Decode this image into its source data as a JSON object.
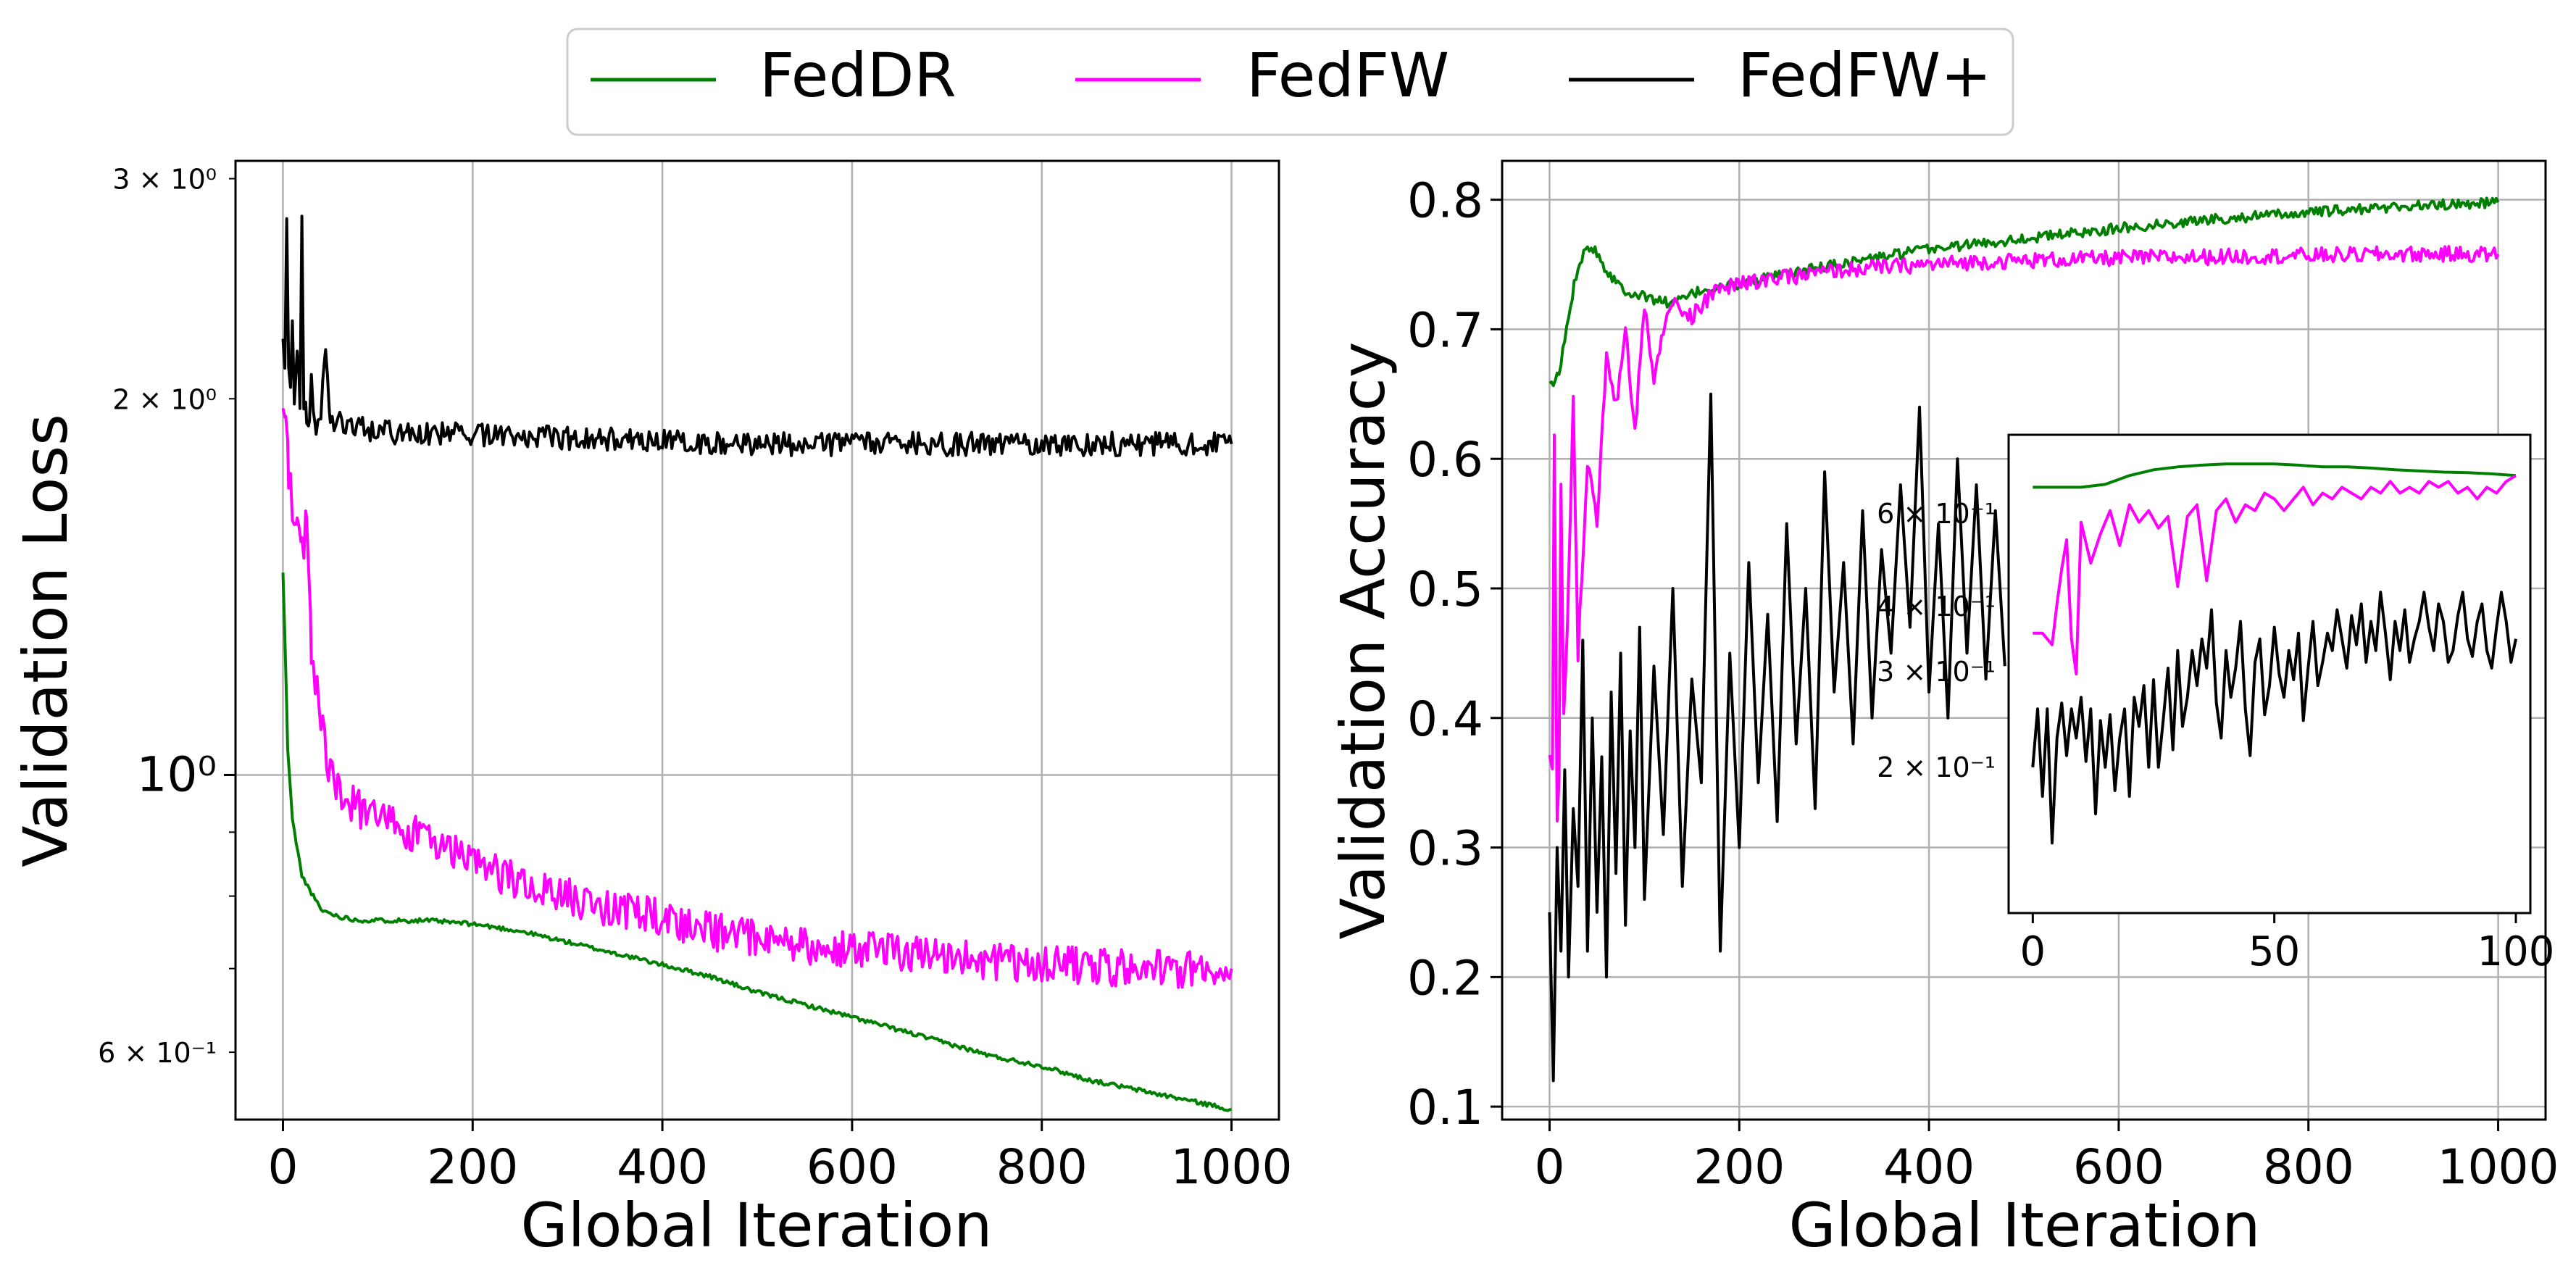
{
  "legend": {
    "entries": [
      {
        "label": "FedDR",
        "color": "#008000"
      },
      {
        "label": "FedFW",
        "color": "#ff00ff"
      },
      {
        "label": "FedFW+",
        "color": "#000000"
      }
    ]
  },
  "chart_data": [
    {
      "type": "line",
      "title": "",
      "xlabel": "Global Iteration",
      "ylabel": "Validation Loss",
      "yscale": "log",
      "xlim": [
        -50,
        1050
      ],
      "ylim": [
        0.53,
        3.1
      ],
      "xticks": [
        0,
        200,
        400,
        600,
        800,
        1000
      ],
      "xtick_labels": [
        "0",
        "200",
        "400",
        "600",
        "800",
        "1000"
      ],
      "yticks_major": [
        1.0
      ],
      "ytick_major_labels": [
        "10⁰"
      ],
      "yticks_minor": [
        0.6,
        2.0,
        3.0
      ],
      "ytick_minor_labels": [
        "6 × 10⁻¹",
        "2 × 10⁰",
        "3 × 10⁰"
      ],
      "grid": true,
      "series": [
        {
          "name": "FedDR",
          "color": "#008000",
          "noise": 0.004,
          "x": [
            0,
            5,
            10,
            20,
            40,
            60,
            80,
            100,
            150,
            200,
            250,
            300,
            350,
            400,
            450,
            500,
            550,
            600,
            650,
            700,
            750,
            800,
            850,
            900,
            950,
            1000
          ],
          "y": [
            1.45,
            1.05,
            0.92,
            0.83,
            0.78,
            0.77,
            0.765,
            0.765,
            0.765,
            0.76,
            0.75,
            0.735,
            0.72,
            0.705,
            0.69,
            0.67,
            0.655,
            0.64,
            0.625,
            0.61,
            0.595,
            0.585,
            0.57,
            0.56,
            0.55,
            0.54
          ]
        },
        {
          "name": "FedFW",
          "color": "#ff00ff",
          "noise": 0.035,
          "x": [
            0,
            3,
            6,
            10,
            15,
            20,
            25,
            30,
            40,
            50,
            60,
            80,
            100,
            150,
            200,
            250,
            300,
            350,
            400,
            450,
            500,
            550,
            600,
            650,
            700,
            750,
            800,
            850,
            900,
            950,
            1000
          ],
          "y": [
            2.0,
            2.0,
            1.75,
            1.65,
            1.6,
            1.5,
            1.6,
            1.25,
            1.1,
            1.0,
            0.97,
            0.94,
            0.92,
            0.89,
            0.85,
            0.82,
            0.8,
            0.78,
            0.77,
            0.75,
            0.74,
            0.73,
            0.725,
            0.72,
            0.715,
            0.71,
            0.705,
            0.705,
            0.7,
            0.7,
            0.7
          ]
        },
        {
          "name": "FedFW+",
          "color": "#000000",
          "noise": 0.022,
          "x": [
            0,
            2,
            4,
            6,
            8,
            10,
            12,
            15,
            18,
            20,
            22,
            25,
            28,
            30,
            35,
            40,
            45,
            50,
            60,
            80,
            100,
            150,
            200,
            300,
            400,
            500,
            600,
            700,
            800,
            900,
            1000
          ],
          "y": [
            2.2,
            2.1,
            2.75,
            2.1,
            2.05,
            2.3,
            2.0,
            2.15,
            2.0,
            2.85,
            2.0,
            1.95,
            1.92,
            2.05,
            1.9,
            1.95,
            2.15,
            1.92,
            1.92,
            1.9,
            1.88,
            1.88,
            1.87,
            1.86,
            1.85,
            1.84,
            1.84,
            1.84,
            1.84,
            1.84,
            1.84
          ]
        }
      ]
    },
    {
      "type": "line",
      "title": "",
      "xlabel": "Global Iteration",
      "ylabel": "Validation Accuracy",
      "yscale": "linear",
      "xlim": [
        -50,
        1050
      ],
      "ylim": [
        0.09,
        0.83
      ],
      "xticks": [
        0,
        200,
        400,
        600,
        800,
        1000
      ],
      "xtick_labels": [
        "0",
        "200",
        "400",
        "600",
        "800",
        "1000"
      ],
      "yticks": [
        0.1,
        0.2,
        0.3,
        0.4,
        0.5,
        0.6,
        0.7,
        0.8
      ],
      "ytick_labels": [
        "0.1",
        "0.2",
        "0.3",
        "0.4",
        "0.5",
        "0.6",
        "0.7",
        "0.8"
      ],
      "grid": true,
      "series": [
        {
          "name": "FedDR",
          "color": "#008000",
          "noise": 0.004,
          "x": [
            0,
            10,
            20,
            30,
            40,
            50,
            60,
            80,
            100,
            130,
            160,
            200,
            300,
            400,
            500,
            600,
            700,
            800,
            900,
            1000
          ],
          "y": [
            0.655,
            0.665,
            0.71,
            0.75,
            0.765,
            0.76,
            0.745,
            0.73,
            0.725,
            0.72,
            0.73,
            0.735,
            0.75,
            0.762,
            0.77,
            0.778,
            0.785,
            0.79,
            0.795,
            0.798
          ]
        },
        {
          "name": "FedFW",
          "color": "#ff00ff",
          "noise": 0.006,
          "x": [
            0,
            3,
            5,
            8,
            10,
            12,
            15,
            20,
            25,
            30,
            40,
            50,
            60,
            70,
            80,
            90,
            100,
            110,
            120,
            130,
            150,
            175,
            200,
            250,
            300,
            350,
            400,
            450,
            500,
            600,
            700,
            800,
            900,
            1000
          ],
          "y": [
            0.37,
            0.36,
            0.62,
            0.32,
            0.35,
            0.58,
            0.4,
            0.5,
            0.65,
            0.45,
            0.6,
            0.55,
            0.68,
            0.64,
            0.7,
            0.62,
            0.72,
            0.66,
            0.7,
            0.72,
            0.71,
            0.73,
            0.735,
            0.74,
            0.745,
            0.748,
            0.75,
            0.752,
            0.753,
            0.755,
            0.756,
            0.757,
            0.758,
            0.758
          ]
        },
        {
          "name": "FedFW+",
          "color": "#000000",
          "noise": 0.0,
          "x": [
            0,
            4,
            8,
            12,
            16,
            20,
            25,
            30,
            35,
            40,
            45,
            50,
            55,
            60,
            65,
            70,
            75,
            80,
            85,
            90,
            95,
            100,
            110,
            120,
            130,
            140,
            150,
            160,
            170,
            180,
            190,
            200,
            210,
            220,
            230,
            240,
            250,
            260,
            270,
            280,
            290,
            300,
            310,
            320,
            330,
            340,
            350,
            360,
            370,
            380,
            390,
            400,
            410,
            420,
            430,
            440,
            450,
            460,
            470,
            480
          ],
          "y": [
            0.25,
            0.12,
            0.3,
            0.22,
            0.36,
            0.2,
            0.33,
            0.27,
            0.46,
            0.22,
            0.4,
            0.25,
            0.37,
            0.2,
            0.42,
            0.28,
            0.45,
            0.24,
            0.39,
            0.3,
            0.47,
            0.26,
            0.44,
            0.31,
            0.5,
            0.27,
            0.43,
            0.35,
            0.65,
            0.22,
            0.45,
            0.3,
            0.52,
            0.35,
            0.48,
            0.32,
            0.55,
            0.38,
            0.5,
            0.33,
            0.59,
            0.42,
            0.52,
            0.38,
            0.56,
            0.4,
            0.53,
            0.45,
            0.58,
            0.47,
            0.64,
            0.42,
            0.55,
            0.4,
            0.6,
            0.45,
            0.58,
            0.43,
            0.56,
            0.44
          ]
        }
      ]
    },
    {
      "type": "line",
      "title": "",
      "inset": true,
      "xlabel": "",
      "ylabel": "",
      "xlim": [
        -5,
        103
      ],
      "ylim": [
        0.05,
        0.87
      ],
      "xticks": [
        0,
        50,
        100
      ],
      "xtick_labels": [
        "0",
        "50",
        "100"
      ],
      "ytick_labels": [
        "6 × 10⁻¹",
        "4 × 10⁻¹",
        "3 × 10⁻¹",
        "2 × 10⁻¹"
      ],
      "series": [
        {
          "name": "FedDR",
          "color": "#008000",
          "noise": 0.0,
          "x": [
            0,
            5,
            10,
            15,
            20,
            25,
            30,
            35,
            40,
            45,
            50,
            55,
            60,
            65,
            70,
            75,
            80,
            85,
            90,
            95,
            100
          ],
          "y": [
            0.78,
            0.78,
            0.78,
            0.785,
            0.8,
            0.81,
            0.815,
            0.818,
            0.82,
            0.82,
            0.82,
            0.818,
            0.815,
            0.815,
            0.813,
            0.81,
            0.808,
            0.806,
            0.805,
            0.803,
            0.8
          ]
        },
        {
          "name": "FedFW",
          "color": "#ff00ff",
          "noise": 0.0,
          "x": [
            0,
            2,
            4,
            5,
            6,
            7,
            8,
            9,
            10,
            12,
            14,
            16,
            18,
            20,
            22,
            24,
            26,
            28,
            30,
            32,
            34,
            36,
            38,
            40,
            42,
            44,
            46,
            48,
            50,
            52,
            54,
            56,
            58,
            60,
            62,
            64,
            66,
            68,
            70,
            72,
            74,
            76,
            78,
            80,
            82,
            84,
            86,
            88,
            90,
            92,
            94,
            96,
            98,
            100
          ],
          "y": [
            0.53,
            0.53,
            0.51,
            0.58,
            0.64,
            0.69,
            0.52,
            0.46,
            0.72,
            0.65,
            0.7,
            0.74,
            0.68,
            0.75,
            0.72,
            0.74,
            0.71,
            0.73,
            0.61,
            0.73,
            0.75,
            0.62,
            0.74,
            0.76,
            0.72,
            0.75,
            0.74,
            0.77,
            0.76,
            0.74,
            0.76,
            0.78,
            0.75,
            0.77,
            0.76,
            0.78,
            0.77,
            0.76,
            0.78,
            0.77,
            0.79,
            0.77,
            0.78,
            0.77,
            0.79,
            0.78,
            0.79,
            0.77,
            0.78,
            0.76,
            0.78,
            0.77,
            0.79,
            0.8
          ]
        },
        {
          "name": "FedFW+",
          "color": "#000000",
          "noise": 0.0,
          "x": [
            0,
            1,
            2,
            3,
            4,
            5,
            6,
            7,
            8,
            9,
            10,
            11,
            12,
            13,
            14,
            15,
            16,
            17,
            18,
            19,
            20,
            21,
            22,
            23,
            24,
            25,
            26,
            27,
            28,
            29,
            30,
            31,
            32,
            33,
            34,
            35,
            36,
            37,
            38,
            39,
            40,
            41,
            42,
            43,
            44,
            45,
            46,
            47,
            48,
            49,
            50,
            51,
            52,
            53,
            54,
            55,
            56,
            57,
            58,
            59,
            60,
            61,
            62,
            63,
            64,
            65,
            66,
            67,
            68,
            69,
            70,
            71,
            72,
            73,
            74,
            75,
            76,
            77,
            78,
            79,
            80,
            81,
            82,
            83,
            84,
            85,
            86,
            87,
            88,
            89,
            90,
            91,
            92,
            93,
            94,
            95,
            96,
            97,
            98,
            99,
            100
          ],
          "y": [
            0.3,
            0.4,
            0.25,
            0.4,
            0.17,
            0.35,
            0.41,
            0.32,
            0.4,
            0.35,
            0.42,
            0.31,
            0.4,
            0.22,
            0.38,
            0.3,
            0.39,
            0.26,
            0.35,
            0.4,
            0.25,
            0.42,
            0.37,
            0.44,
            0.3,
            0.45,
            0.3,
            0.38,
            0.47,
            0.33,
            0.5,
            0.37,
            0.42,
            0.5,
            0.44,
            0.52,
            0.47,
            0.57,
            0.41,
            0.35,
            0.5,
            0.42,
            0.47,
            0.55,
            0.4,
            0.32,
            0.48,
            0.52,
            0.39,
            0.44,
            0.54,
            0.46,
            0.42,
            0.5,
            0.45,
            0.53,
            0.38,
            0.47,
            0.55,
            0.44,
            0.48,
            0.53,
            0.5,
            0.57,
            0.52,
            0.47,
            0.56,
            0.51,
            0.58,
            0.48,
            0.55,
            0.5,
            0.6,
            0.53,
            0.45,
            0.55,
            0.5,
            0.57,
            0.48,
            0.52,
            0.55,
            0.6,
            0.54,
            0.5,
            0.58,
            0.55,
            0.48,
            0.5,
            0.56,
            0.6,
            0.52,
            0.49,
            0.55,
            0.58,
            0.5,
            0.47,
            0.54,
            0.6,
            0.55,
            0.48,
            0.52
          ]
        }
      ]
    }
  ]
}
